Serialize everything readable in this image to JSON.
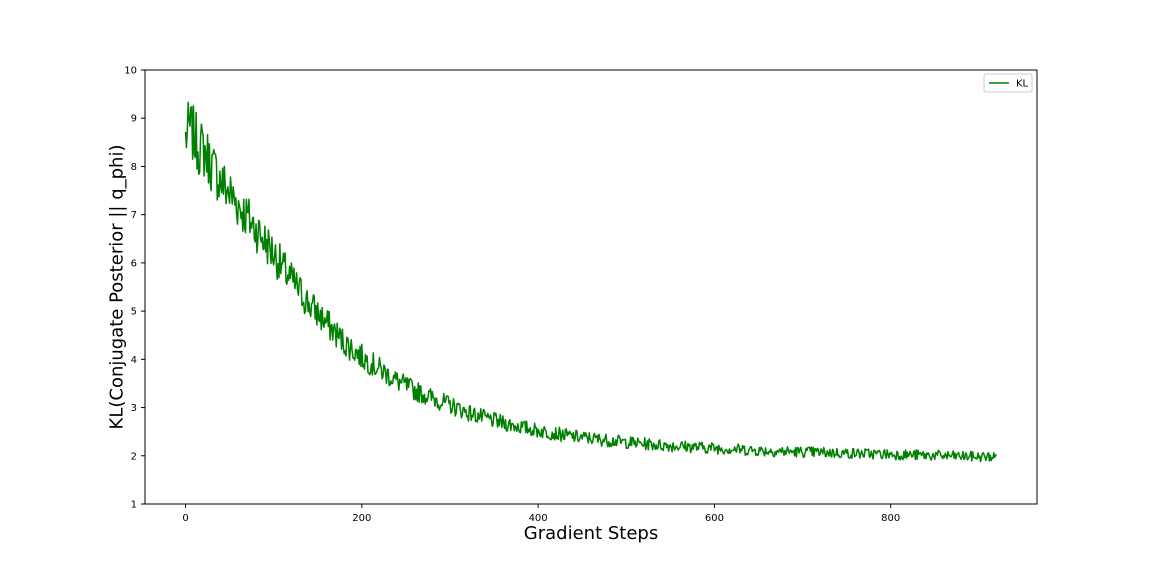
{
  "chart_data": {
    "type": "line",
    "title": "",
    "xlabel": "Gradient Steps",
    "ylabel": "KL(Conjugate Posterior || q_phi)",
    "xlim": [
      -46,
      966
    ],
    "ylim": [
      1,
      10
    ],
    "xticks": [
      0,
      200,
      400,
      600,
      800
    ],
    "yticks": [
      1,
      2,
      3,
      4,
      5,
      6,
      7,
      8,
      9,
      10
    ],
    "grid": false,
    "legend": {
      "position": "top-right",
      "entries": [
        "KL"
      ]
    },
    "series": [
      {
        "name": "KL",
        "color": "#008000",
        "x": [
          0,
          5,
          10,
          15,
          20,
          25,
          30,
          40,
          50,
          60,
          70,
          80,
          90,
          100,
          110,
          120,
          130,
          140,
          150,
          160,
          170,
          180,
          190,
          200,
          220,
          240,
          260,
          280,
          300,
          320,
          340,
          360,
          380,
          400,
          420,
          440,
          460,
          480,
          500,
          520,
          540,
          560,
          580,
          600,
          620,
          640,
          660,
          680,
          700,
          720,
          740,
          760,
          780,
          800,
          820,
          840,
          860,
          880,
          900,
          920
        ],
        "y": [
          8.6,
          8.8,
          8.6,
          8.4,
          8.35,
          8.2,
          8.0,
          7.7,
          7.45,
          7.2,
          6.95,
          6.7,
          6.45,
          6.2,
          5.9,
          5.65,
          5.4,
          5.15,
          4.95,
          4.75,
          4.55,
          4.35,
          4.2,
          4.05,
          3.8,
          3.55,
          3.35,
          3.2,
          3.05,
          2.9,
          2.78,
          2.68,
          2.6,
          2.52,
          2.46,
          2.4,
          2.36,
          2.32,
          2.28,
          2.25,
          2.22,
          2.2,
          2.18,
          2.16,
          2.14,
          2.12,
          2.1,
          2.09,
          2.08,
          2.07,
          2.06,
          2.05,
          2.04,
          2.03,
          2.02,
          2.01,
          2.0,
          1.99,
          1.98,
          1.98
        ]
      }
    ]
  }
}
